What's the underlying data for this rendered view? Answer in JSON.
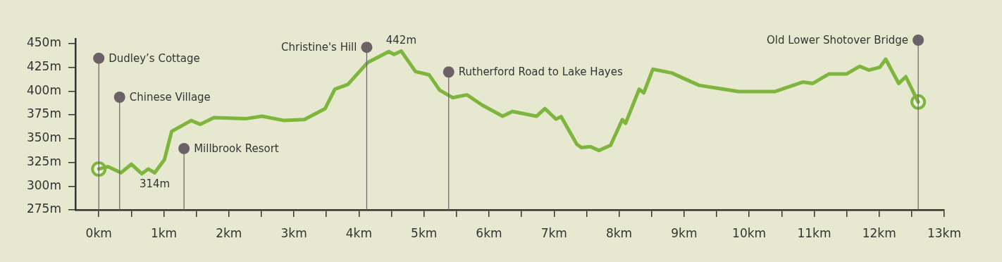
{
  "chart_data": {
    "type": "line",
    "xlim": [
      -0.36,
      13
    ],
    "ylim": [
      275,
      455
    ],
    "xticks": [
      {
        "value": 0,
        "label": "0km"
      },
      {
        "value": 0.5,
        "label": null
      },
      {
        "value": 1,
        "label": "1km"
      },
      {
        "value": 1.5,
        "label": null
      },
      {
        "value": 2,
        "label": "2km"
      },
      {
        "value": 2.5,
        "label": null
      },
      {
        "value": 3,
        "label": "3km"
      },
      {
        "value": 3.5,
        "label": null
      },
      {
        "value": 4,
        "label": "4km"
      },
      {
        "value": 4.5,
        "label": null
      },
      {
        "value": 5,
        "label": "5km"
      },
      {
        "value": 5.5,
        "label": null
      },
      {
        "value": 6,
        "label": "6km"
      },
      {
        "value": 6.5,
        "label": null
      },
      {
        "value": 7,
        "label": "7km"
      },
      {
        "value": 7.5,
        "label": null
      },
      {
        "value": 8,
        "label": "8km"
      },
      {
        "value": 8.5,
        "label": null
      },
      {
        "value": 9,
        "label": "9km"
      },
      {
        "value": 9.5,
        "label": null
      },
      {
        "value": 10,
        "label": "10km"
      },
      {
        "value": 10.5,
        "label": null
      },
      {
        "value": 11,
        "label": "11km"
      },
      {
        "value": 11.5,
        "label": null
      },
      {
        "value": 12,
        "label": "12km"
      },
      {
        "value": 12.5,
        "label": null
      },
      {
        "value": 13,
        "label": "13km"
      }
    ],
    "yticks": [
      {
        "value": 275,
        "label": "275m"
      },
      {
        "value": 300,
        "label": "300m"
      },
      {
        "value": 325,
        "label": "325m"
      },
      {
        "value": 350,
        "label": "350m"
      },
      {
        "value": 375,
        "label": "375m"
      },
      {
        "value": 400,
        "label": "400m"
      },
      {
        "value": 425,
        "label": "425m"
      },
      {
        "value": 450,
        "label": "450m"
      }
    ],
    "legend": false,
    "line_style": "solid",
    "series": [
      {
        "color": "#7db53d",
        "x": [
          0,
          0.14,
          0.34,
          0.5,
          0.66,
          0.76,
          0.86,
          1.01,
          1.12,
          1.42,
          1.56,
          1.77,
          2.27,
          2.51,
          2.85,
          3.16,
          3.48,
          3.63,
          3.83,
          4.12,
          4.15,
          4.46,
          4.54,
          4.65,
          4.87,
          5.08,
          5.24,
          5.44,
          5.66,
          5.9,
          6.21,
          6.36,
          6.73,
          6.86,
          7.03,
          7.11,
          7.35,
          7.42,
          7.56,
          7.69,
          7.87,
          8.05,
          8.1,
          8.31,
          8.38,
          8.52,
          8.81,
          9.23,
          9.84,
          10.4,
          10.83,
          10.98,
          11.23,
          11.5,
          11.7,
          11.84,
          12.01,
          12.1,
          12.3,
          12.41,
          12.6
        ],
        "values": [
          318,
          320.5,
          314,
          323,
          313,
          318,
          314,
          328,
          357.5,
          369,
          365,
          372,
          371,
          373.5,
          369,
          370,
          381.5,
          402,
          407,
          429,
          430.5,
          441.5,
          438.5,
          442,
          420.5,
          417,
          401,
          393,
          396,
          385,
          373.5,
          378.5,
          373.5,
          381.5,
          370.5,
          373,
          344,
          340.5,
          341.5,
          337.5,
          343,
          370,
          366,
          402,
          398,
          423,
          419,
          406,
          399.5,
          399.5,
          409.5,
          408,
          418,
          418,
          426,
          422,
          425,
          433.5,
          408,
          415,
          388.5
        ]
      },
      {
        "type": "scatter",
        "color": "#7db53d",
        "marker": "circle",
        "x": [
          0,
          12.6
        ],
        "values": [
          318,
          388.5
        ]
      }
    ],
    "annotations": [
      {
        "text": "Dudley’s Cottage",
        "x": 0,
        "y": 434.5
      },
      {
        "text": "Chinese Village",
        "x": 0.32,
        "y": 393.5
      },
      {
        "text": "Millbrook Resort",
        "x": 1.31,
        "y": 339.5
      },
      {
        "text": "Christine's Hill",
        "x": 4.12,
        "y": 446
      },
      {
        "text": "Rutherford Road to Lake Hayes",
        "x": 5.38,
        "y": 420
      },
      {
        "text": "Old Lower Shotover Bridge",
        "x": 12.6,
        "y": 453.5
      },
      {
        "text": "314m",
        "x": 0.86,
        "y": 314
      },
      {
        "text": "442m",
        "x": 4.65,
        "y": 442
      }
    ]
  }
}
